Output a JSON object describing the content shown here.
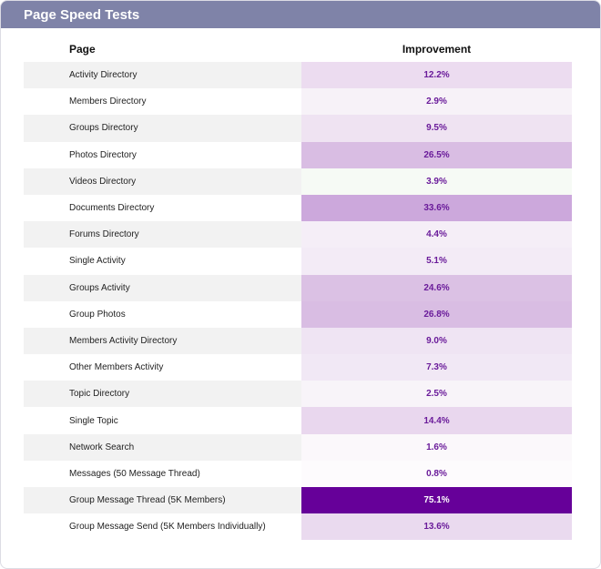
{
  "header": {
    "title": "Page Speed Tests"
  },
  "table": {
    "columns": [
      "Page",
      "Improvement"
    ],
    "rows": [
      {
        "page": "Activity Directory",
        "improvement": "12.2%",
        "color": "#ecdcf0"
      },
      {
        "page": "Members Directory",
        "improvement": "2.9%",
        "color": "#f7f2f8"
      },
      {
        "page": "Groups Directory",
        "improvement": "9.5%",
        "color": "#efe3f2"
      },
      {
        "page": "Photos Directory",
        "improvement": "26.5%",
        "color": "#d9bde3"
      },
      {
        "page": "Videos Directory",
        "improvement": "3.9%",
        "color": "#f6faf5"
      },
      {
        "page": "Documents Directory",
        "improvement": "33.6%",
        "color": "#cca8dc"
      },
      {
        "page": "Forums Directory",
        "improvement": "4.4%",
        "color": "#f5eef7"
      },
      {
        "page": "Single Activity",
        "improvement": "5.1%",
        "color": "#f3ebf6"
      },
      {
        "page": "Groups Activity",
        "improvement": "24.6%",
        "color": "#dbc1e4"
      },
      {
        "page": "Group Photos",
        "improvement": "26.8%",
        "color": "#d9bde3"
      },
      {
        "page": "Members Activity Directory",
        "improvement": "9.0%",
        "color": "#efe4f3"
      },
      {
        "page": "Other Members Activity",
        "improvement": "7.3%",
        "color": "#f1e8f5"
      },
      {
        "page": "Topic Directory",
        "improvement": "2.5%",
        "color": "#f8f4f9"
      },
      {
        "page": "Single Topic",
        "improvement": "14.4%",
        "color": "#e9d7ee"
      },
      {
        "page": "Network Search",
        "improvement": "1.6%",
        "color": "#fbf8fb"
      },
      {
        "page": "Messages (50 Message Thread)",
        "improvement": "0.8%",
        "color": "#fdfbfd"
      },
      {
        "page": "Group Message Thread (5K Members)",
        "improvement": "75.1%",
        "color": "#660099"
      },
      {
        "page": "Group Message Send (5K Members Individually)",
        "improvement": "13.6%",
        "color": "#eadaef"
      }
    ]
  }
}
